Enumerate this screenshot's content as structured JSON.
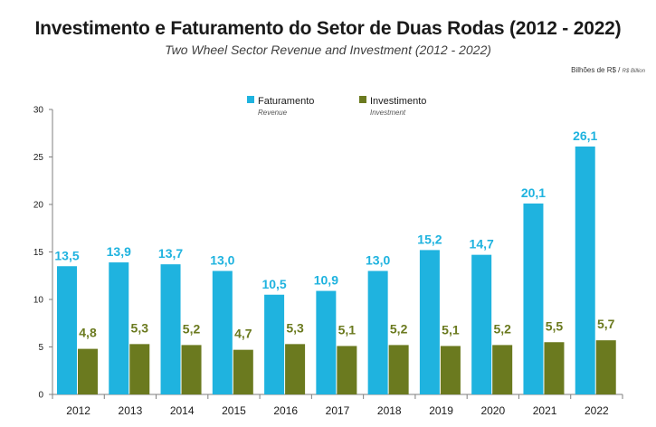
{
  "chart_data": {
    "type": "bar",
    "title": "Investimento e Faturamento do Setor de Duas Rodas (2012 - 2022)",
    "subtitle": "Two Wheel Sector Revenue and Investment (2012 - 2022)",
    "unit_label": "Bilhões de R$ /",
    "unit_label_en": "R$ Billion",
    "categories": [
      "2012",
      "2013",
      "2014",
      "2015",
      "2016",
      "2017",
      "2018",
      "2019",
      "2020",
      "2021",
      "2022"
    ],
    "series": [
      {
        "name": "Faturamento",
        "name_en": "Revenue",
        "color": "#1fb3df",
        "values": [
          13.5,
          13.9,
          13.7,
          13.0,
          10.5,
          10.9,
          13.0,
          15.2,
          14.7,
          20.1,
          26.1
        ],
        "labels": [
          "13,5",
          "13,9",
          "13,7",
          "13,0",
          "10,5",
          "10,9",
          "13,0",
          "15,2",
          "14,7",
          "20,1",
          "26,1"
        ]
      },
      {
        "name": "Investimento",
        "name_en": "Investment",
        "color": "#6b7a1f",
        "values": [
          4.8,
          5.3,
          5.2,
          4.7,
          5.3,
          5.1,
          5.2,
          5.1,
          5.2,
          5.5,
          5.7
        ],
        "labels": [
          "4,8",
          "5,3",
          "5,2",
          "4,7",
          "5,3",
          "5,1",
          "5,2",
          "5,1",
          "5,2",
          "5,5",
          "5,7"
        ]
      }
    ],
    "yticks": [
      0,
      5,
      10,
      15,
      20,
      25,
      30
    ],
    "ylim": [
      0,
      30
    ],
    "grid": false,
    "legend": "top-left"
  }
}
